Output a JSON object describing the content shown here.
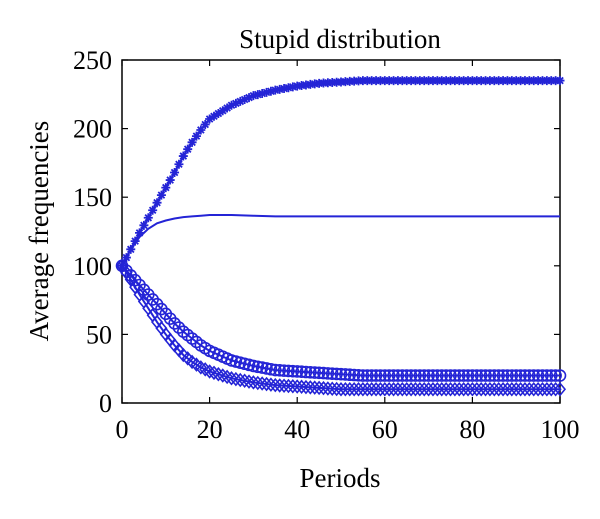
{
  "chart_data": {
    "type": "line",
    "title": "Stupid distribution",
    "xlabel": "Periods",
    "ylabel": "Average frequencies",
    "xlim": [
      0,
      100
    ],
    "ylim": [
      0,
      250
    ],
    "xticks": [
      0,
      20,
      40,
      60,
      80,
      100
    ],
    "yticks": [
      0,
      50,
      100,
      150,
      200,
      250
    ],
    "x": [
      0,
      2,
      4,
      6,
      8,
      10,
      12,
      14,
      16,
      18,
      20,
      25,
      30,
      35,
      40,
      45,
      50,
      55,
      60,
      70,
      80,
      90,
      100
    ],
    "series": [
      {
        "marker": "star",
        "color": "#2424d6",
        "values": [
          100,
          112,
          124,
          135,
          146,
          157,
          168,
          180,
          190,
          199,
          207,
          217,
          224,
          228,
          231,
          233,
          234,
          235,
          235,
          235,
          235,
          235,
          235
        ]
      },
      {
        "marker": "none",
        "color": "#2424d6",
        "values": [
          100,
          112,
          121,
          127,
          131,
          133,
          134.5,
          135.5,
          136,
          136.5,
          137,
          137,
          136.5,
          136,
          136,
          136,
          136,
          136,
          136,
          136,
          136,
          136,
          136
        ]
      },
      {
        "marker": "circle",
        "color": "#2424d6",
        "values": [
          100,
          93,
          86,
          79,
          72,
          65,
          58,
          52,
          47,
          42,
          38,
          31,
          27,
          24,
          23,
          22,
          21,
          20,
          20,
          20,
          20,
          20,
          20
        ]
      },
      {
        "marker": "diamond",
        "color": "#2424d6",
        "values": [
          100,
          90,
          79,
          69,
          59,
          50,
          42,
          35,
          30,
          26,
          23,
          18,
          15,
          13,
          12,
          11,
          10,
          10,
          10,
          10,
          10,
          10,
          10
        ]
      }
    ],
    "grid": false,
    "legend": "none"
  }
}
